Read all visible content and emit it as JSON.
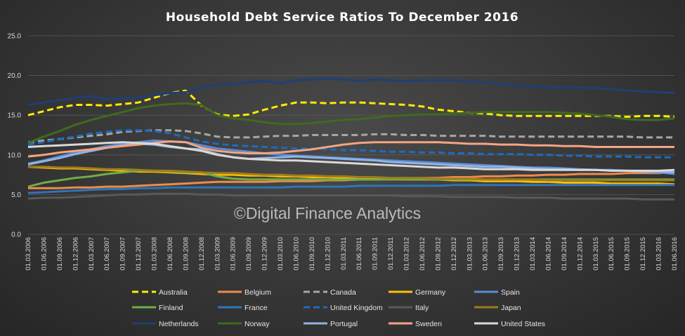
{
  "chart_data": {
    "type": "line",
    "title": "Household Debt Service Ratios To December 2016",
    "watermark": "©Digital Finance Analytics",
    "xlabel": "",
    "ylabel": "",
    "ylim": [
      0,
      25
    ],
    "yticks": [
      "0.0",
      "5.0",
      "10.0",
      "15.0",
      "20.0",
      "25.0"
    ],
    "grid": true,
    "legend_position": "bottom",
    "categories": [
      "01.03.2006",
      "01.06.2006",
      "01.09.2006",
      "01.12.2006",
      "01.03.2007",
      "01.06.2007",
      "01.09.2007",
      "01.12.2007",
      "01.03.2008",
      "01.06.2008",
      "01.09.2008",
      "01.12.2008",
      "01.03.2009",
      "01.06.2009",
      "01.09.2009",
      "01.12.2009",
      "01.03.2010",
      "01.06.2010",
      "01.09.2010",
      "01.12.2010",
      "01.03.2011",
      "01.06.2011",
      "01.09.2011",
      "01.12.2011",
      "01.03.2012",
      "01.06.2012",
      "01.09.2012",
      "01.12.2012",
      "01.03.2013",
      "01.06.2013",
      "01.09.2013",
      "01.12.2013",
      "01.03.2014",
      "01.06.2014",
      "01.09.2014",
      "01.12.2014",
      "01.03.2015",
      "01.06.2015",
      "01.09.2015",
      "01.12.2015",
      "01.03.2016",
      "01.06.2016"
    ],
    "series": [
      {
        "name": "Australia",
        "color": "#ffeb00",
        "dash": "dashed",
        "values": [
          15.0,
          15.5,
          16.0,
          16.3,
          16.3,
          16.2,
          16.4,
          16.6,
          17.2,
          17.8,
          18.1,
          16.2,
          15.1,
          14.9,
          15.1,
          15.7,
          16.2,
          16.6,
          16.6,
          16.5,
          16.6,
          16.6,
          16.5,
          16.4,
          16.3,
          16.1,
          15.7,
          15.5,
          15.3,
          15.2,
          15.0,
          14.9,
          14.9,
          14.9,
          14.9,
          14.9,
          14.9,
          14.9,
          14.8,
          14.9,
          14.9,
          14.8
        ]
      },
      {
        "name": "Belgium",
        "color": "#ef8b4a",
        "dash": "solid",
        "values": [
          5.8,
          5.8,
          5.8,
          5.9,
          5.9,
          6.0,
          6.0,
          6.1,
          6.2,
          6.3,
          6.4,
          6.5,
          6.6,
          6.6,
          6.6,
          6.6,
          6.7,
          6.7,
          6.7,
          6.8,
          6.8,
          6.9,
          6.9,
          7.0,
          7.0,
          7.1,
          7.1,
          7.2,
          7.2,
          7.3,
          7.3,
          7.4,
          7.4,
          7.5,
          7.5,
          7.6,
          7.6,
          7.6,
          7.7,
          7.7,
          7.7,
          7.8
        ]
      },
      {
        "name": "Canada",
        "color": "#a6a6a6",
        "dash": "dashed",
        "values": [
          11.6,
          11.8,
          12.0,
          12.2,
          12.4,
          12.6,
          12.9,
          13.0,
          13.1,
          13.1,
          13.0,
          12.7,
          12.3,
          12.2,
          12.2,
          12.3,
          12.4,
          12.4,
          12.5,
          12.5,
          12.5,
          12.5,
          12.6,
          12.6,
          12.5,
          12.5,
          12.4,
          12.4,
          12.4,
          12.4,
          12.3,
          12.3,
          12.3,
          12.3,
          12.3,
          12.3,
          12.3,
          12.3,
          12.3,
          12.2,
          12.2,
          12.2
        ]
      },
      {
        "name": "Germany",
        "color": "#ffc000",
        "dash": "solid",
        "values": [
          8.5,
          8.4,
          8.3,
          8.3,
          8.2,
          8.1,
          8.0,
          7.9,
          7.9,
          7.8,
          7.7,
          7.6,
          7.5,
          7.5,
          7.4,
          7.4,
          7.3,
          7.3,
          7.2,
          7.2,
          7.1,
          7.1,
          7.0,
          7.0,
          6.9,
          6.9,
          6.9,
          6.8,
          6.8,
          6.7,
          6.7,
          6.7,
          6.6,
          6.6,
          6.5,
          6.5,
          6.5,
          6.4,
          6.4,
          6.4,
          6.4,
          6.3
        ]
      },
      {
        "name": "Spain",
        "color": "#5b8bd6",
        "dash": "solid",
        "values": [
          8.9,
          9.3,
          9.8,
          10.3,
          10.7,
          11.1,
          11.4,
          11.6,
          11.8,
          11.7,
          11.6,
          11.2,
          10.8,
          10.6,
          10.4,
          10.2,
          10.0,
          9.9,
          9.8,
          9.7,
          9.6,
          9.5,
          9.4,
          9.3,
          9.2,
          9.1,
          9.0,
          8.9,
          8.8,
          8.7,
          8.6,
          8.5,
          8.4,
          8.4,
          8.3,
          8.2,
          8.1,
          8.1,
          8.0,
          7.9,
          7.8,
          7.6
        ]
      },
      {
        "name": "Finland",
        "color": "#70ad47",
        "dash": "solid",
        "values": [
          6.0,
          6.5,
          6.8,
          7.1,
          7.3,
          7.6,
          7.8,
          8.0,
          8.0,
          7.9,
          7.8,
          7.8,
          7.3,
          7.0,
          6.9,
          6.9,
          6.9,
          6.9,
          6.9,
          6.9,
          6.9,
          6.9,
          6.9,
          6.9,
          6.9,
          6.9,
          6.9,
          6.9,
          6.9,
          6.9,
          6.9,
          6.9,
          6.9,
          6.9,
          6.9,
          6.9,
          6.9,
          6.9,
          6.9,
          6.9,
          6.9,
          6.9
        ]
      },
      {
        "name": "France",
        "color": "#2e75b6",
        "dash": "solid",
        "values": [
          5.2,
          5.3,
          5.4,
          5.5,
          5.6,
          5.7,
          5.7,
          5.8,
          5.8,
          5.9,
          5.9,
          5.9,
          5.9,
          5.9,
          5.9,
          5.9,
          5.9,
          6.0,
          6.0,
          6.0,
          6.0,
          6.1,
          6.1,
          6.1,
          6.1,
          6.1,
          6.1,
          6.2,
          6.2,
          6.2,
          6.2,
          6.2,
          6.2,
          6.2,
          6.2,
          6.2,
          6.2,
          6.2,
          6.2,
          6.2,
          6.2,
          6.2
        ]
      },
      {
        "name": "United Kingdom",
        "color": "#1f6bbf",
        "dash": "dashed",
        "values": [
          11.3,
          11.6,
          12.0,
          12.3,
          12.7,
          12.9,
          13.1,
          13.1,
          13.0,
          12.7,
          12.2,
          11.7,
          11.4,
          11.2,
          11.1,
          11.0,
          10.9,
          10.8,
          10.8,
          10.7,
          10.6,
          10.6,
          10.5,
          10.4,
          10.4,
          10.3,
          10.3,
          10.2,
          10.2,
          10.1,
          10.1,
          10.1,
          10.0,
          10.0,
          9.9,
          9.9,
          9.8,
          9.8,
          9.8,
          9.7,
          9.7,
          9.7
        ]
      },
      {
        "name": "Italy",
        "color": "#595959",
        "dash": "solid",
        "values": [
          4.5,
          4.6,
          4.6,
          4.7,
          4.8,
          4.9,
          5.0,
          5.0,
          5.1,
          5.1,
          5.1,
          5.0,
          5.0,
          4.9,
          4.9,
          4.9,
          4.9,
          4.9,
          4.9,
          4.9,
          4.9,
          4.9,
          4.9,
          4.9,
          4.8,
          4.8,
          4.8,
          4.7,
          4.7,
          4.7,
          4.7,
          4.6,
          4.6,
          4.6,
          4.5,
          4.5,
          4.5,
          4.5,
          4.5,
          4.4,
          4.4,
          4.4
        ]
      },
      {
        "name": "Japan",
        "color": "#a07b1e",
        "dash": "solid",
        "values": [
          8.5,
          8.5,
          8.4,
          8.4,
          8.3,
          8.2,
          8.2,
          8.1,
          8.0,
          8.0,
          7.9,
          7.8,
          7.7,
          7.7,
          7.6,
          7.5,
          7.5,
          7.4,
          7.4,
          7.3,
          7.3,
          7.2,
          7.2,
          7.1,
          7.1,
          7.1,
          7.0,
          7.0,
          7.0,
          6.9,
          6.9,
          6.9,
          6.9,
          6.8,
          6.8,
          6.8,
          6.8,
          6.8,
          6.8,
          6.8,
          6.8,
          6.8
        ]
      },
      {
        "name": "Netherlands",
        "color": "#1f3f77",
        "dash": "solid",
        "values": [
          16.3,
          16.6,
          16.9,
          17.2,
          17.4,
          17.0,
          17.1,
          17.2,
          17.5,
          17.8,
          17.9,
          18.5,
          18.9,
          18.9,
          19.2,
          19.3,
          19.0,
          19.4,
          19.5,
          19.6,
          19.5,
          19.3,
          19.5,
          19.4,
          19.3,
          19.4,
          19.4,
          19.4,
          19.2,
          19.1,
          18.9,
          18.7,
          18.6,
          18.5,
          18.5,
          18.5,
          18.4,
          18.3,
          18.1,
          18.0,
          17.9,
          17.8
        ]
      },
      {
        "name": "Norway",
        "color": "#3f6a1f",
        "dash": "solid",
        "values": [
          11.5,
          12.3,
          13.0,
          13.8,
          14.4,
          14.9,
          15.4,
          15.9,
          16.2,
          16.4,
          16.5,
          16.3,
          15.0,
          14.6,
          14.4,
          14.1,
          13.9,
          13.9,
          14.0,
          14.2,
          14.4,
          14.5,
          14.7,
          14.9,
          15.0,
          15.1,
          15.1,
          15.2,
          15.3,
          15.4,
          15.4,
          15.4,
          15.4,
          15.4,
          15.3,
          15.2,
          15.0,
          14.8,
          14.5,
          14.4,
          14.4,
          14.6
        ]
      },
      {
        "name": "Portugal",
        "color": "#8fb4e3",
        "dash": "solid",
        "values": [
          8.8,
          9.2,
          9.6,
          10.1,
          10.5,
          10.9,
          11.2,
          11.4,
          11.3,
          11.0,
          10.8,
          10.7,
          10.1,
          9.7,
          9.5,
          9.6,
          9.7,
          9.8,
          9.7,
          9.6,
          9.5,
          9.4,
          9.3,
          9.1,
          9.0,
          8.9,
          8.8,
          8.7,
          8.6,
          8.5,
          8.5,
          8.4,
          8.3,
          8.2,
          8.2,
          8.1,
          8.1,
          8.0,
          8.0,
          7.9,
          7.9,
          7.8
        ]
      },
      {
        "name": "Sweden",
        "color": "#f4a582",
        "dash": "solid",
        "values": [
          9.8,
          10.0,
          10.3,
          10.5,
          10.7,
          10.9,
          11.1,
          11.3,
          11.5,
          11.7,
          11.6,
          10.9,
          10.5,
          10.3,
          10.2,
          10.2,
          10.3,
          10.5,
          10.7,
          11.0,
          11.3,
          11.5,
          11.6,
          11.6,
          11.6,
          11.6,
          11.6,
          11.5,
          11.4,
          11.4,
          11.3,
          11.3,
          11.2,
          11.2,
          11.1,
          11.1,
          11.0,
          11.0,
          11.0,
          11.0,
          11.0,
          11.0
        ]
      },
      {
        "name": "United States",
        "color": "#d9d9d9",
        "dash": "solid",
        "values": [
          11.0,
          11.1,
          11.2,
          11.3,
          11.4,
          11.5,
          11.6,
          11.5,
          11.4,
          11.1,
          10.8,
          10.5,
          10.0,
          9.7,
          9.5,
          9.4,
          9.3,
          9.3,
          9.2,
          9.1,
          9.0,
          8.9,
          8.8,
          8.7,
          8.6,
          8.5,
          8.4,
          8.4,
          8.3,
          8.2,
          8.2,
          8.2,
          8.1,
          8.1,
          8.1,
          8.1,
          8.1,
          8.0,
          8.0,
          8.0,
          8.0,
          8.1
        ]
      }
    ]
  }
}
